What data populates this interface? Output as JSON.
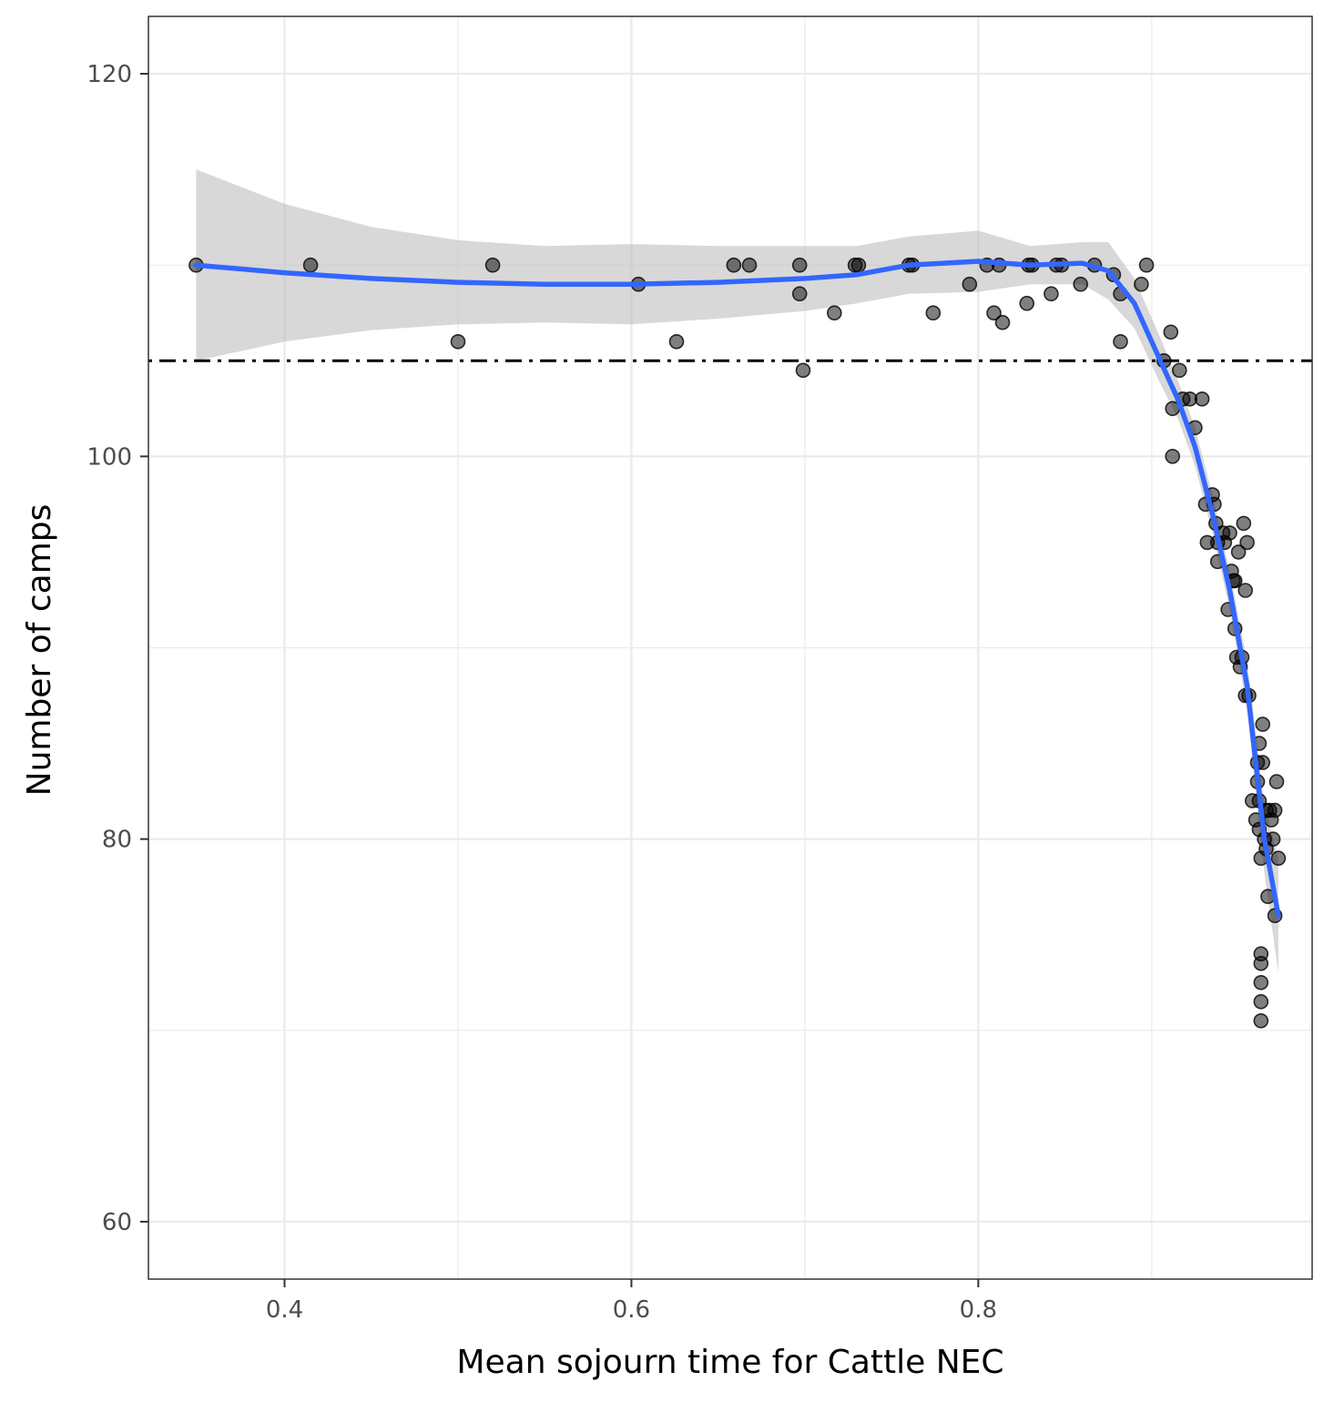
{
  "chart_data": {
    "type": "scatter",
    "xlabel": "Mean sojourn time for Cattle NEC",
    "ylabel": "Number of camps",
    "xlim": [
      0.3215,
      0.9925
    ],
    "ylim": [
      57,
      123
    ],
    "x_ticks": [
      0.4,
      0.6,
      0.8
    ],
    "x_tick_labels": [
      "0.4",
      "0.6",
      "0.8"
    ],
    "y_ticks": [
      60,
      80,
      100,
      120
    ],
    "y_tick_labels": [
      "60",
      "80",
      "100",
      "120"
    ],
    "grid": true,
    "reference_line": {
      "y": 105,
      "style": "dot-dash",
      "color": "#000000"
    },
    "colors": {
      "points": "#000000",
      "smooth": "#3366ff",
      "ribbon": "#bebebe",
      "grid": "#ebebeb",
      "panel_border": "#333333"
    },
    "points": [
      [
        0.349,
        110
      ],
      [
        0.415,
        110
      ],
      [
        0.5,
        106
      ],
      [
        0.52,
        110
      ],
      [
        0.604,
        109
      ],
      [
        0.626,
        106
      ],
      [
        0.659,
        110
      ],
      [
        0.668,
        110
      ],
      [
        0.697,
        110
      ],
      [
        0.697,
        108.5
      ],
      [
        0.699,
        104.5
      ],
      [
        0.717,
        107.5
      ],
      [
        0.729,
        110
      ],
      [
        0.731,
        110
      ],
      [
        0.76,
        110
      ],
      [
        0.762,
        110
      ],
      [
        0.774,
        107.5
      ],
      [
        0.795,
        109
      ],
      [
        0.805,
        110
      ],
      [
        0.809,
        107.5
      ],
      [
        0.812,
        110
      ],
      [
        0.814,
        107
      ],
      [
        0.828,
        108
      ],
      [
        0.829,
        110
      ],
      [
        0.831,
        110
      ],
      [
        0.842,
        108.5
      ],
      [
        0.845,
        110
      ],
      [
        0.848,
        110
      ],
      [
        0.859,
        109
      ],
      [
        0.867,
        110
      ],
      [
        0.878,
        109.5
      ],
      [
        0.882,
        108.5
      ],
      [
        0.882,
        106
      ],
      [
        0.894,
        109
      ],
      [
        0.897,
        110
      ],
      [
        0.907,
        105
      ],
      [
        0.911,
        106.5
      ],
      [
        0.912,
        102.5
      ],
      [
        0.912,
        100
      ],
      [
        0.916,
        104.5
      ],
      [
        0.918,
        103
      ],
      [
        0.922,
        103
      ],
      [
        0.925,
        101.5
      ],
      [
        0.929,
        103
      ],
      [
        0.931,
        97.5
      ],
      [
        0.932,
        95.5
      ],
      [
        0.935,
        98
      ],
      [
        0.936,
        97.5
      ],
      [
        0.937,
        96.5
      ],
      [
        0.938,
        95.5
      ],
      [
        0.938,
        94.5
      ],
      [
        0.941,
        96
      ],
      [
        0.942,
        95.5
      ],
      [
        0.944,
        92
      ],
      [
        0.945,
        96
      ],
      [
        0.946,
        94
      ],
      [
        0.947,
        93.5
      ],
      [
        0.948,
        93.5
      ],
      [
        0.948,
        91
      ],
      [
        0.949,
        89.5
      ],
      [
        0.95,
        95
      ],
      [
        0.951,
        89
      ],
      [
        0.952,
        89.5
      ],
      [
        0.953,
        96.5
      ],
      [
        0.954,
        93
      ],
      [
        0.954,
        87.5
      ],
      [
        0.955,
        95.5
      ],
      [
        0.956,
        87.5
      ],
      [
        0.958,
        82
      ],
      [
        0.96,
        81
      ],
      [
        0.961,
        84
      ],
      [
        0.961,
        83
      ],
      [
        0.962,
        85
      ],
      [
        0.962,
        82
      ],
      [
        0.962,
        80.5
      ],
      [
        0.963,
        79
      ],
      [
        0.963,
        74
      ],
      [
        0.963,
        73.5
      ],
      [
        0.963,
        72.5
      ],
      [
        0.963,
        71.5
      ],
      [
        0.963,
        70.5
      ],
      [
        0.964,
        86
      ],
      [
        0.964,
        84
      ],
      [
        0.965,
        80
      ],
      [
        0.966,
        79.5
      ],
      [
        0.966,
        81.5
      ],
      [
        0.967,
        77
      ],
      [
        0.968,
        81.5
      ],
      [
        0.969,
        81
      ],
      [
        0.97,
        80
      ],
      [
        0.971,
        76
      ],
      [
        0.971,
        81.5
      ],
      [
        0.972,
        83
      ],
      [
        0.973,
        79
      ]
    ],
    "smooth": [
      [
        0.349,
        110
      ],
      [
        0.4,
        109.6
      ],
      [
        0.45,
        109.3
      ],
      [
        0.5,
        109.1
      ],
      [
        0.55,
        109
      ],
      [
        0.6,
        109
      ],
      [
        0.65,
        109.1
      ],
      [
        0.7,
        109.3
      ],
      [
        0.73,
        109.5
      ],
      [
        0.76,
        110
      ],
      [
        0.8,
        110.2
      ],
      [
        0.83,
        110
      ],
      [
        0.86,
        110.1
      ],
      [
        0.875,
        109.7
      ],
      [
        0.89,
        108
      ],
      [
        0.905,
        105
      ],
      [
        0.915,
        103
      ],
      [
        0.925,
        100.5
      ],
      [
        0.935,
        97
      ],
      [
        0.945,
        93
      ],
      [
        0.955,
        88
      ],
      [
        0.965,
        80
      ],
      [
        0.973,
        76
      ]
    ],
    "ribbon_upper": [
      [
        0.349,
        115
      ],
      [
        0.4,
        113.2
      ],
      [
        0.45,
        112
      ],
      [
        0.5,
        111.3
      ],
      [
        0.55,
        111
      ],
      [
        0.6,
        111.1
      ],
      [
        0.65,
        111
      ],
      [
        0.7,
        111
      ],
      [
        0.73,
        111
      ],
      [
        0.76,
        111.5
      ],
      [
        0.8,
        111.8
      ],
      [
        0.83,
        111
      ],
      [
        0.86,
        111.2
      ],
      [
        0.875,
        111.2
      ],
      [
        0.89,
        109.3
      ],
      [
        0.905,
        106.2
      ],
      [
        0.915,
        104
      ],
      [
        0.925,
        101.5
      ],
      [
        0.935,
        98
      ],
      [
        0.945,
        94
      ],
      [
        0.955,
        89.3
      ],
      [
        0.965,
        81.8
      ],
      [
        0.973,
        79
      ]
    ],
    "ribbon_lower": [
      [
        0.349,
        105
      ],
      [
        0.4,
        106
      ],
      [
        0.45,
        106.6
      ],
      [
        0.5,
        106.9
      ],
      [
        0.55,
        107
      ],
      [
        0.6,
        106.9
      ],
      [
        0.65,
        107.2
      ],
      [
        0.7,
        107.6
      ],
      [
        0.73,
        108
      ],
      [
        0.76,
        108.5
      ],
      [
        0.8,
        108.6
      ],
      [
        0.83,
        109
      ],
      [
        0.86,
        109
      ],
      [
        0.875,
        108.2
      ],
      [
        0.89,
        106.7
      ],
      [
        0.905,
        103.8
      ],
      [
        0.915,
        102
      ],
      [
        0.925,
        99.5
      ],
      [
        0.935,
        96
      ],
      [
        0.945,
        92
      ],
      [
        0.955,
        86.7
      ],
      [
        0.965,
        78.2
      ],
      [
        0.973,
        73
      ]
    ]
  }
}
